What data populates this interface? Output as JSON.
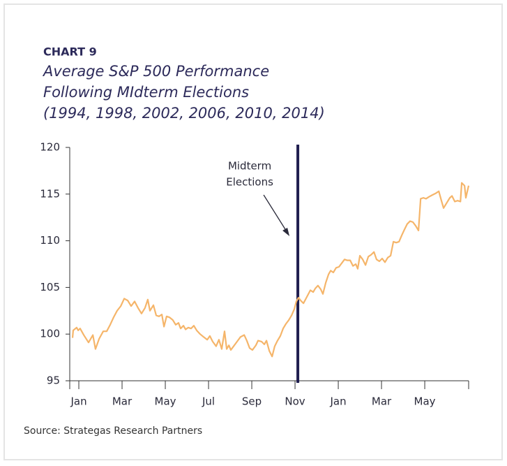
{
  "chart_data": {
    "type": "line",
    "label": "CHART 9",
    "title": [
      "Average S&P 500 Performance",
      "Following MIdterm Elections",
      "(1994, 1998, 2002, 2006, 2010, 2014)"
    ],
    "source": "Source: Strategas Research Partners",
    "annotation": {
      "text": [
        "Midterm",
        "Elections"
      ],
      "x": 10.13,
      "color": "#1f1d4f"
    },
    "x": [
      -0.29,
      -0.26,
      -0.1,
      -0.03,
      0.06,
      0.23,
      0.45,
      0.65,
      0.77,
      0.94,
      1.13,
      1.29,
      1.45,
      1.61,
      1.77,
      1.94,
      2.1,
      2.26,
      2.42,
      2.58,
      2.74,
      2.9,
      3.06,
      3.19,
      3.29,
      3.45,
      3.58,
      3.71,
      3.84,
      3.94,
      4.06,
      4.19,
      4.35,
      4.48,
      4.61,
      4.71,
      4.84,
      4.94,
      5.06,
      5.19,
      5.32,
      5.45,
      5.61,
      5.77,
      5.94,
      6.06,
      6.19,
      6.35,
      6.48,
      6.61,
      6.74,
      6.84,
      6.94,
      7.03,
      7.16,
      7.32,
      7.48,
      7.65,
      7.77,
      7.9,
      8.03,
      8.19,
      8.29,
      8.45,
      8.58,
      8.68,
      8.81,
      8.94,
      9.06,
      9.19,
      9.32,
      9.45,
      9.58,
      9.71,
      9.84,
      9.97,
      10.06,
      10.16,
      10.26,
      10.39,
      10.55,
      10.71,
      10.84,
      10.94,
      11.06,
      11.19,
      11.29,
      11.42,
      11.55,
      11.65,
      11.77,
      11.9,
      12.03,
      12.16,
      12.29,
      12.42,
      12.55,
      12.68,
      12.81,
      12.9,
      13.0,
      13.13,
      13.26,
      13.39,
      13.52,
      13.65,
      13.77,
      13.9,
      14.03,
      14.16,
      14.29,
      14.42,
      14.55,
      14.68,
      14.81,
      14.94,
      15.06,
      15.19,
      15.32,
      15.45,
      15.58,
      15.71,
      15.81,
      15.94,
      16.06,
      16.19,
      16.35,
      16.52,
      16.65,
      16.77,
      16.87,
      17.0,
      17.16,
      17.26,
      17.39,
      17.52,
      17.65,
      17.71,
      17.84,
      17.9,
      18.03
    ],
    "series": [
      {
        "name": "S&P 500",
        "color": "#f5b56a",
        "values": [
          99.6,
          100.4,
          100.7,
          100.4,
          100.6,
          99.9,
          99.1,
          99.9,
          98.4,
          99.5,
          100.3,
          100.3,
          101.0,
          101.8,
          102.5,
          103.0,
          103.8,
          103.6,
          103.0,
          103.5,
          102.8,
          102.2,
          102.8,
          103.7,
          102.5,
          103.1,
          102.0,
          101.9,
          102.1,
          100.8,
          101.9,
          101.8,
          101.5,
          101.0,
          101.2,
          100.6,
          100.9,
          100.5,
          100.7,
          100.6,
          100.9,
          100.4,
          100.0,
          99.7,
          99.4,
          99.8,
          99.2,
          98.7,
          99.4,
          98.4,
          100.3,
          98.4,
          98.8,
          98.3,
          98.7,
          99.2,
          99.7,
          99.9,
          99.3,
          98.5,
          98.3,
          98.8,
          99.3,
          99.2,
          98.9,
          99.3,
          98.2,
          97.6,
          98.7,
          99.3,
          99.8,
          100.6,
          101.1,
          101.5,
          102.0,
          102.7,
          103.5,
          103.9,
          103.6,
          103.3,
          104.0,
          104.7,
          104.5,
          104.9,
          105.2,
          104.8,
          104.3,
          105.5,
          106.4,
          106.8,
          106.6,
          107.1,
          107.2,
          107.6,
          108.0,
          107.9,
          107.9,
          107.3,
          107.5,
          107.0,
          108.4,
          108.0,
          107.4,
          108.3,
          108.5,
          108.8,
          108.0,
          107.8,
          108.1,
          107.7,
          108.2,
          108.4,
          109.9,
          109.8,
          109.9,
          110.6,
          111.2,
          111.8,
          112.1,
          112.0,
          111.6,
          111.1,
          114.5,
          114.6,
          114.5,
          114.7,
          114.9,
          115.1,
          115.3,
          114.3,
          113.5,
          114.0,
          114.6,
          114.8,
          114.2,
          114.3,
          114.2,
          116.2,
          115.9,
          114.6,
          115.9
        ]
      }
    ],
    "xlim": [
      -0.42,
      18.03
    ],
    "xticks": [
      {
        "value": 0,
        "label": "Jan"
      },
      {
        "value": 2,
        "label": "Mar"
      },
      {
        "value": 4,
        "label": "May"
      },
      {
        "value": 6,
        "label": "Jul"
      },
      {
        "value": 8,
        "label": "Sep"
      },
      {
        "value": 10,
        "label": "Nov"
      },
      {
        "value": 12,
        "label": "Jan"
      },
      {
        "value": 14,
        "label": "Mar"
      },
      {
        "value": 16,
        "label": "May"
      }
    ],
    "ylim": [
      95,
      120
    ],
    "yticks": [
      95,
      100,
      105,
      110,
      115,
      120
    ],
    "grid": false
  }
}
